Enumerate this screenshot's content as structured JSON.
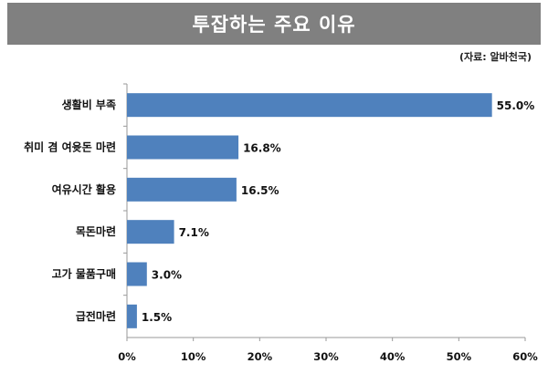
{
  "title": "투잡하는 주요 이유",
  "source": "(자료: 알바천국)",
  "colors": {
    "bar": "#4F81BD",
    "title_bg": "#808080",
    "axis": "#9a9a9a"
  },
  "chart_data": {
    "type": "bar",
    "orientation": "horizontal",
    "categories": [
      "생활비 부족",
      "취미 겸 여윳돈 마련",
      "여유시간 활용",
      "목돈마련",
      "고가 물품구매",
      "급전마련"
    ],
    "values": [
      55.0,
      16.8,
      16.5,
      7.1,
      3.0,
      1.5
    ],
    "value_labels": [
      "55.0%",
      "16.8%",
      "16.5%",
      "7.1%",
      "3.0%",
      "1.5%"
    ],
    "xlim": [
      0,
      60
    ],
    "ticks": [
      0,
      10,
      20,
      30,
      40,
      50,
      60
    ],
    "tick_labels": [
      "0%",
      "10%",
      "20%",
      "30%",
      "40%",
      "50%",
      "60%"
    ],
    "grid": false,
    "legend": "none"
  }
}
